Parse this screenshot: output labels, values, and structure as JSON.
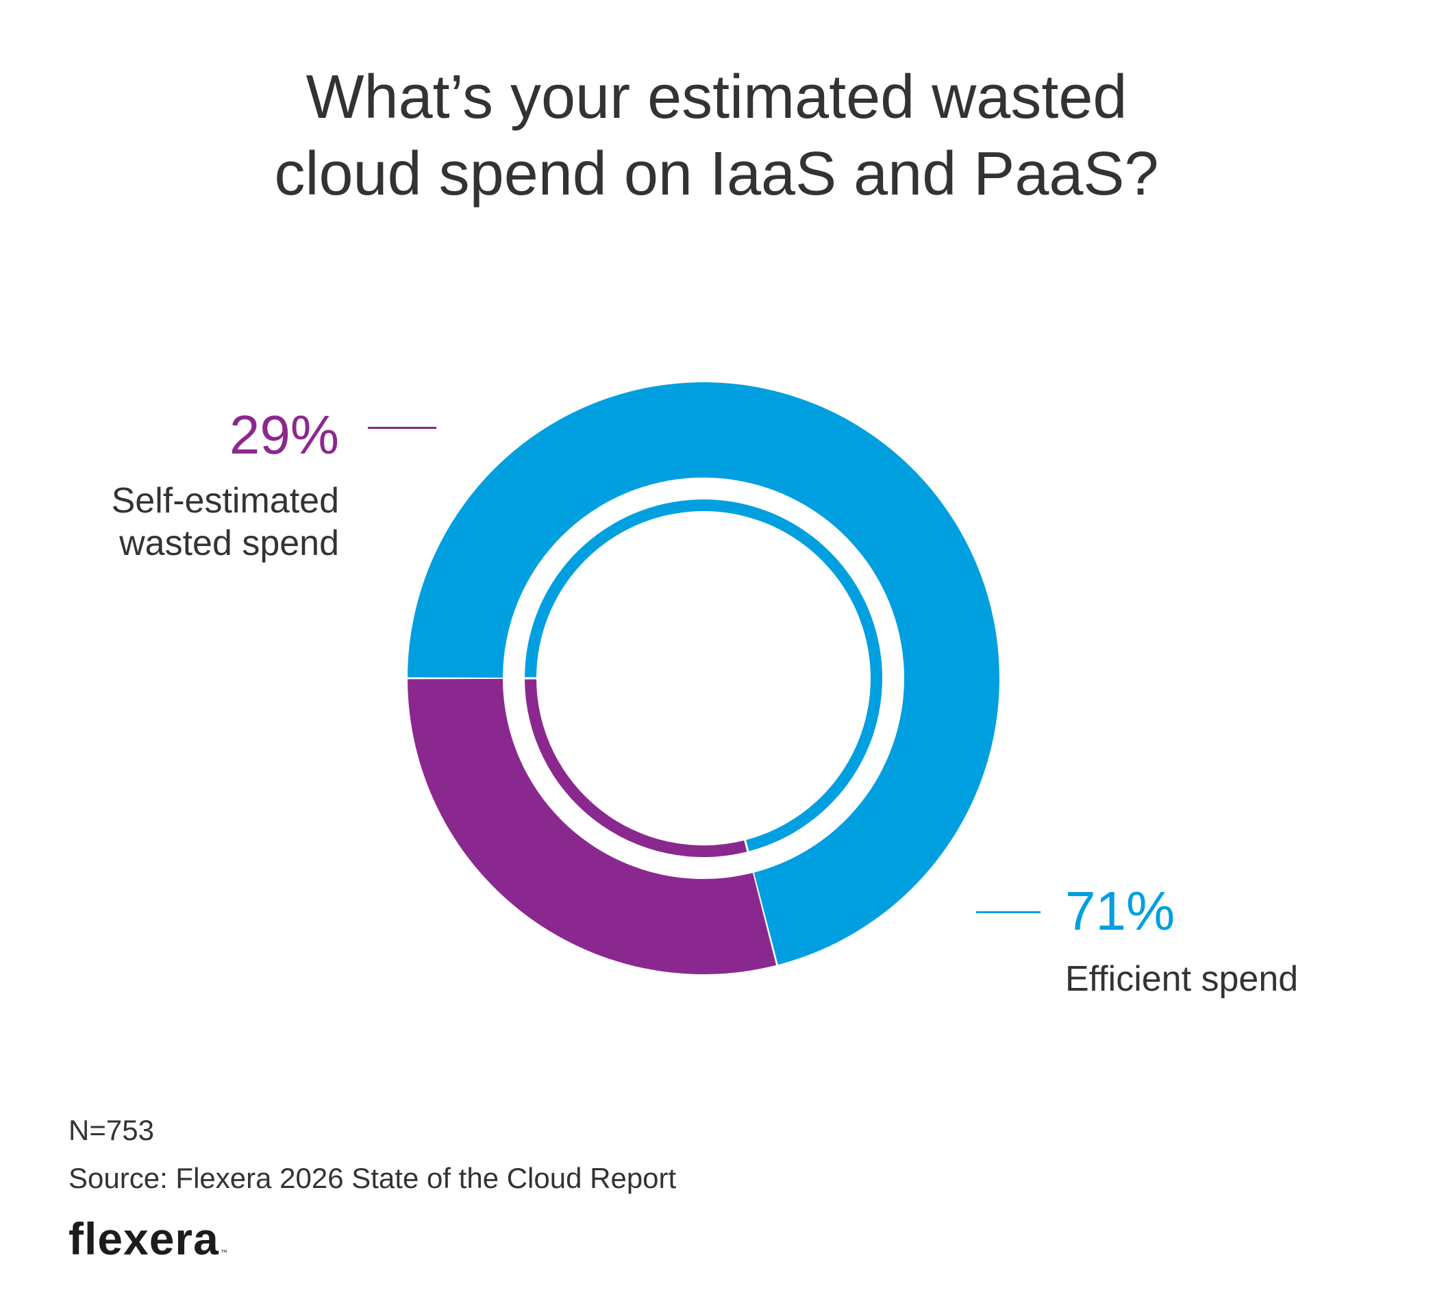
{
  "chart_data": {
    "type": "pie",
    "style": "donut",
    "title_lines": [
      "What’s your estimated wasted",
      "cloud spend on IaaS and PaaS?"
    ],
    "slices": [
      {
        "name": "wasted",
        "label_lines": [
          "Self-estimated",
          "wasted spend"
        ],
        "value": 29,
        "display": "29%",
        "color": "#8b288f"
      },
      {
        "name": "efficient",
        "label_lines": [
          "Efficient spend"
        ],
        "value": 71,
        "display": "71%",
        "color": "#009fe0"
      }
    ],
    "start": "12 o'clock clockwise for efficient; wasted ends at 9 o'clock"
  },
  "footer": {
    "n": "N=753",
    "source": "Source: Flexera 2026 State of the Cloud Report"
  },
  "logo": {
    "text": "flexera",
    "tm": "™"
  }
}
